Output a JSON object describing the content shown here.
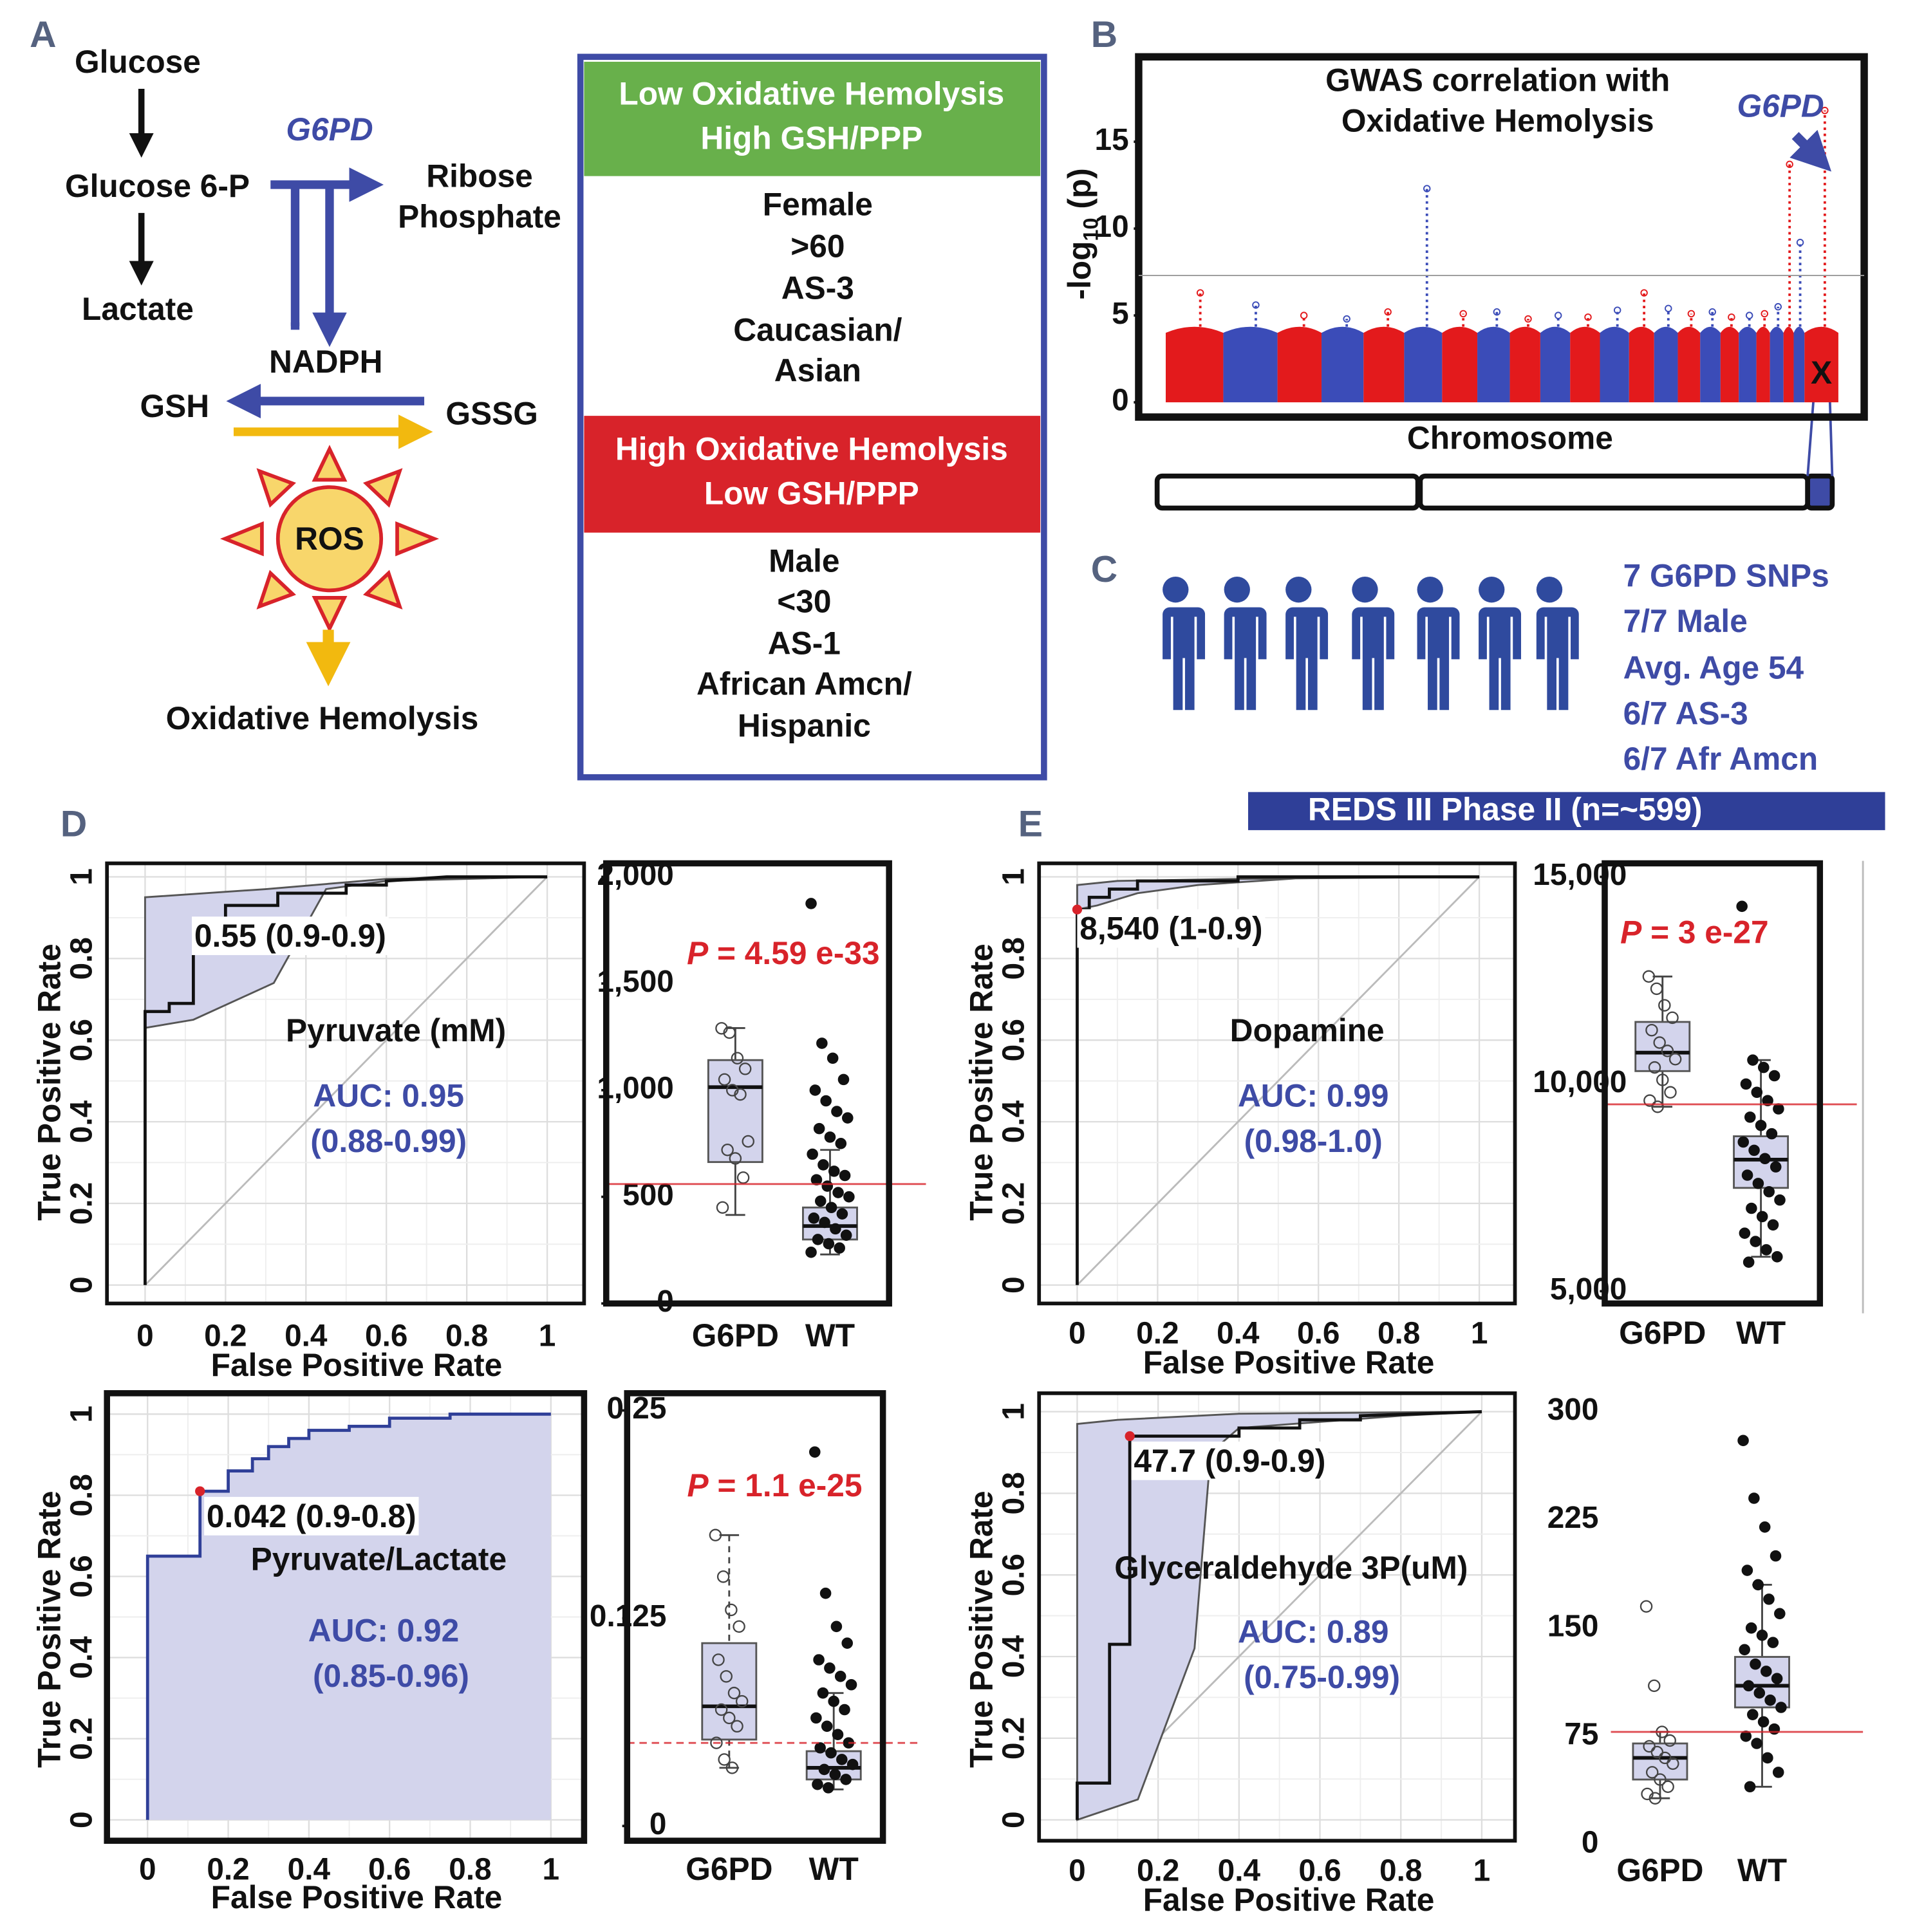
{
  "panel_labels": [
    "A",
    "B",
    "C",
    "D",
    "E"
  ],
  "pathway": {
    "glucose": "Glucose",
    "glucose6p": "Glucose 6-P",
    "lactate": "Lactate",
    "enzyme": "G6PD",
    "ribose": [
      "Ribose",
      "Phosphate"
    ],
    "nadph": "NADPH",
    "gsh": "GSH",
    "gssg": "GSSG",
    "ros": "ROS",
    "outcome": "Oxidative Hemolysis"
  },
  "table": {
    "low_header": [
      "Low Oxidative Hemolysis",
      "High GSH/PPP"
    ],
    "low_items": [
      "Female",
      ">60",
      "AS-3",
      "Caucasian/",
      "Asian"
    ],
    "high_header": [
      "High Oxidative Hemolysis",
      "Low GSH/PPP"
    ],
    "high_items": [
      "Male",
      "<30",
      "AS-1",
      "African Amcn/",
      "Hispanic"
    ]
  },
  "cohort": {
    "lines": [
      "7 G6PD SNPs",
      "7/7 Male",
      "Avg. Age 54",
      "6/7 AS-3",
      "6/7 Afr Amcn"
    ],
    "banner": "REDS III Phase II (n=~599)"
  },
  "chart_data": [
    {
      "type": "manhattan",
      "title": [
        "GWAS correlation with",
        "Oxidative Hemolysis"
      ],
      "ylabel": [
        "-log",
        "10",
        " (p)"
      ],
      "xlabel": "Chromosome",
      "ylim": [
        0,
        20
      ],
      "yticks": [
        0,
        5,
        10,
        15
      ],
      "categories": [
        null,
        null,
        null,
        null,
        null,
        null,
        null,
        null,
        null,
        null,
        null,
        null,
        null,
        null,
        null,
        null,
        null,
        null,
        null,
        null,
        null,
        null,
        "X"
      ],
      "values": [
        6.3,
        5.6,
        5.0,
        4.8,
        5.2,
        12.3,
        5.1,
        5.2,
        4.8,
        5.0,
        4.9,
        5.3,
        6.3,
        5.4,
        5.1,
        5.2,
        4.9,
        5.0,
        5.1,
        5.5,
        13.7,
        9.2,
        16.8
      ],
      "colors": [
        "#e31a1c",
        "#3b4cb8"
      ],
      "threshold": 7.3,
      "annotation": "G6PD"
    },
    {
      "type": "roc",
      "xlim": [
        0,
        1
      ],
      "ylim": [
        0,
        1
      ],
      "xticks": [
        0,
        0.2,
        0.4,
        0.6,
        0.8,
        1
      ],
      "yticks": [
        0,
        0.2,
        0.4,
        0.6,
        0.8,
        1
      ],
      "xlabel": "False Positive Rate",
      "ylabel": "True Positive Rate",
      "x": [
        0,
        0,
        0.06,
        0.06,
        0.12,
        0.12,
        0.2,
        0.2,
        0.33,
        0.33,
        0.5,
        0.5,
        0.6,
        0.6,
        0.75,
        1
      ],
      "y": [
        0,
        0.67,
        0.67,
        0.69,
        0.69,
        0.86,
        0.86,
        0.93,
        0.93,
        0.96,
        0.96,
        0.98,
        0.98,
        0.99,
        1,
        1
      ],
      "band_upper_x": [
        0,
        0.3,
        0.6,
        1
      ],
      "band_upper_y": [
        0.95,
        0.97,
        0.995,
        1
      ],
      "band_lower_x": [
        0,
        0.12,
        0.32,
        0.45,
        0.6,
        1
      ],
      "band_lower_y": [
        0.63,
        0.65,
        0.74,
        0.97,
        0.99,
        1
      ],
      "cutoff": {
        "label": "0.55 (0.9-0.9)"
      },
      "marker": "Pyruvate (mM)",
      "auc": "AUC: 0.95",
      "auc_ci": "(0.88-0.99)",
      "fill_under": false
    },
    {
      "type": "box",
      "categories": [
        "G6PD",
        "WT"
      ],
      "ylim": [
        0,
        2000
      ],
      "yticks": [
        0,
        500,
        {
          "value": 1000,
          "label": "1,000"
        },
        {
          "value": 1500,
          "label": "1,500"
        },
        {
          "value": 2000,
          "label": "2,000"
        }
      ],
      "stats": [
        {
          "min": 415,
          "q1": 663,
          "median": 1014,
          "q3": 1141,
          "max": 1291
        },
        {
          "min": 230,
          "q1": 300,
          "median": 363,
          "q3": 450,
          "max": 720
        }
      ],
      "points": [
        [
          1290,
          1270,
          1150,
          1100,
          1050,
          1000,
          980,
          760,
          720,
          680,
          590,
          450
        ],
        [
          1875,
          1220,
          1150,
          1050,
          1000,
          950,
          900,
          870,
          820,
          780,
          750,
          700,
          650,
          620,
          600,
          580,
          550,
          520,
          500,
          480,
          450,
          420,
          400,
          380,
          350,
          320,
          300,
          280,
          260,
          240
        ]
      ],
      "threshold": 560,
      "threshold_dashed": false,
      "p_label": [
        "P",
        " = 4.59 e-33"
      ]
    },
    {
      "type": "roc",
      "xlim": [
        0,
        1
      ],
      "ylim": [
        0,
        1
      ],
      "xticks": [
        0,
        0.2,
        0.4,
        0.6,
        0.8,
        1
      ],
      "yticks": [
        0,
        0.2,
        0.4,
        0.6,
        0.8,
        1
      ],
      "xlabel": "False Positive Rate",
      "ylabel": "True Positive Rate",
      "x": [
        0,
        0,
        0.13,
        0.13,
        0.2,
        0.2,
        0.26,
        0.26,
        0.3,
        0.3,
        0.35,
        0.35,
        0.4,
        0.4,
        0.5,
        0.5,
        0.6,
        0.6,
        0.75,
        0.75,
        1
      ],
      "y": [
        0,
        0.65,
        0.65,
        0.81,
        0.81,
        0.86,
        0.86,
        0.89,
        0.89,
        0.92,
        0.92,
        0.94,
        0.94,
        0.96,
        0.96,
        0.97,
        0.97,
        0.99,
        0.99,
        1,
        1
      ],
      "cutoff": {
        "x": 0.13,
        "y": 0.81,
        "label": "0.042 (0.9-0.8)"
      },
      "marker": "Pyruvate/Lactate",
      "auc": "AUC: 0.92",
      "auc_ci": "(0.85-0.96)",
      "fill_under": true
    },
    {
      "type": "box",
      "categories": [
        "G6PD",
        "WT"
      ],
      "ylim": [
        0,
        0.25
      ],
      "yticks": [
        0,
        0.125,
        0.25
      ],
      "stats": [
        {
          "min": 0.035,
          "q1": 0.052,
          "median": 0.072,
          "q3": 0.11,
          "max": 0.175
        },
        {
          "min": 0.022,
          "q1": 0.028,
          "median": 0.035,
          "q3": 0.045,
          "max": 0.08
        }
      ],
      "points": [
        [
          0.175,
          0.15,
          0.13,
          0.12,
          0.1,
          0.09,
          0.08,
          0.075,
          0.07,
          0.065,
          0.06,
          0.05,
          0.04,
          0.035
        ],
        [
          0.225,
          0.14,
          0.12,
          0.11,
          0.1,
          0.095,
          0.09,
          0.085,
          0.08,
          0.075,
          0.07,
          0.065,
          0.06,
          0.055,
          0.05,
          0.047,
          0.044,
          0.04,
          0.037,
          0.034,
          0.031,
          0.028,
          0.025,
          0.023
        ]
      ],
      "threshold": 0.05,
      "threshold_dashed": true,
      "p_label": [
        "P",
        " = 1.1 e-25"
      ]
    },
    {
      "type": "roc",
      "xlim": [
        0,
        1
      ],
      "ylim": [
        0,
        1
      ],
      "xticks": [
        0,
        0.2,
        0.4,
        0.6,
        0.8,
        1
      ],
      "yticks": [
        0,
        0.2,
        0.4,
        0.6,
        0.8,
        1
      ],
      "xlabel": "False Positive Rate",
      "ylabel": "True Positive Rate",
      "x": [
        0,
        0,
        0.03,
        0.03,
        0.08,
        0.08,
        0.15,
        0.15,
        0.4,
        0.4,
        1
      ],
      "y": [
        0,
        0.92,
        0.92,
        0.95,
        0.95,
        0.97,
        0.97,
        0.99,
        0.99,
        1,
        1
      ],
      "band_upper_x": [
        0,
        0.1,
        0.4,
        1
      ],
      "band_upper_y": [
        0.98,
        0.99,
        0.995,
        1
      ],
      "band_lower_x": [
        0,
        0.05,
        0.15,
        0.3,
        0.6,
        1
      ],
      "band_lower_y": [
        0.92,
        0.93,
        0.96,
        0.98,
        1,
        1
      ],
      "cutoff": {
        "x": 0,
        "y": 0.92,
        "label": "8,540 (1-0.9)"
      },
      "marker": "Dopamine",
      "auc": "AUC: 0.99",
      "auc_ci": "(0.98-1.0)",
      "fill_under": false
    },
    {
      "type": "box",
      "categories": [
        "G6PD",
        "WT"
      ],
      "ylim": [
        5000,
        15000
      ],
      "yticks": [
        {
          "value": 5000,
          "label": "5,000"
        },
        {
          "value": 10000,
          "label": "10,000"
        },
        {
          "value": 15000,
          "label": "15,000"
        }
      ],
      "stats": [
        {
          "min": 9451,
          "q1": 10312,
          "median": 10757,
          "q3": 11499,
          "max": 12596
        },
        {
          "min": 5831,
          "q1": 7493,
          "median": 8175,
          "q3": 8739,
          "max": 10578
        }
      ],
      "points": [
        [
          12596,
          12300,
          11900,
          11600,
          11300,
          11000,
          10800,
          10600,
          10400,
          10100,
          9800,
          9600,
          9451
        ],
        [
          14288,
          10578,
          10400,
          10200,
          10000,
          9800,
          9600,
          9400,
          9200,
          9000,
          8800,
          8600,
          8400,
          8200,
          8000,
          7800,
          7600,
          7400,
          7200,
          7000,
          6800,
          6600,
          6400,
          6200,
          6000,
          5831,
          5700
        ]
      ],
      "threshold": 9510,
      "threshold_dashed": false,
      "p_label": [
        "P",
        " = 3 e-27"
      ]
    },
    {
      "type": "roc",
      "xlim": [
        0,
        1
      ],
      "ylim": [
        0,
        1
      ],
      "xticks": [
        0,
        0.2,
        0.4,
        0.6,
        0.8,
        1
      ],
      "yticks": [
        0,
        0.2,
        0.4,
        0.6,
        0.8,
        1
      ],
      "xlabel": "False Positive Rate",
      "ylabel": "True Positive Rate",
      "x": [
        0,
        0,
        0.08,
        0.08,
        0.13,
        0.13,
        0.4,
        0.4,
        0.55,
        0.55,
        0.7,
        0.7,
        1
      ],
      "y": [
        0,
        0.09,
        0.09,
        0.43,
        0.43,
        0.94,
        0.94,
        0.96,
        0.96,
        0.98,
        0.98,
        0.99,
        1
      ],
      "band_upper_x": [
        0,
        0.1,
        0.4,
        1
      ],
      "band_upper_y": [
        0.97,
        0.98,
        0.995,
        1
      ],
      "band_lower_x": [
        0,
        0.15,
        0.29,
        0.33,
        0.4,
        0.8,
        1
      ],
      "band_lower_y": [
        0,
        0.05,
        0.42,
        0.9,
        0.96,
        0.99,
        1
      ],
      "cutoff": {
        "x": 0.13,
        "y": 0.94,
        "label": "47.7 (0.9-0.9)"
      },
      "marker": "Glyceraldehyde 3P(uM)",
      "auc": "AUC: 0.89",
      "auc_ci": "(0.75-0.99)",
      "fill_under": false
    },
    {
      "type": "box",
      "categories": [
        "G6PD",
        "WT"
      ],
      "ylim": [
        0,
        300
      ],
      "yticks": [
        0,
        75,
        150,
        225,
        300
      ],
      "stats": [
        {
          "min": 32,
          "q1": 45,
          "median": 60,
          "q3": 70,
          "max": 78
        },
        {
          "min": 40,
          "q1": 95,
          "median": 110,
          "q3": 130,
          "max": 180
        }
      ],
      "points": [
        [
          165,
          110,
          78,
          72,
          68,
          64,
          60,
          56,
          50,
          45,
          40,
          35,
          32
        ],
        [
          280,
          240,
          220,
          200,
          190,
          180,
          170,
          160,
          150,
          145,
          140,
          135,
          125,
          120,
          115,
          110,
          105,
          100,
          95,
          90,
          85,
          80,
          75,
          70,
          60,
          50,
          40
        ]
      ],
      "threshold": 78,
      "threshold_dashed": false
    }
  ]
}
